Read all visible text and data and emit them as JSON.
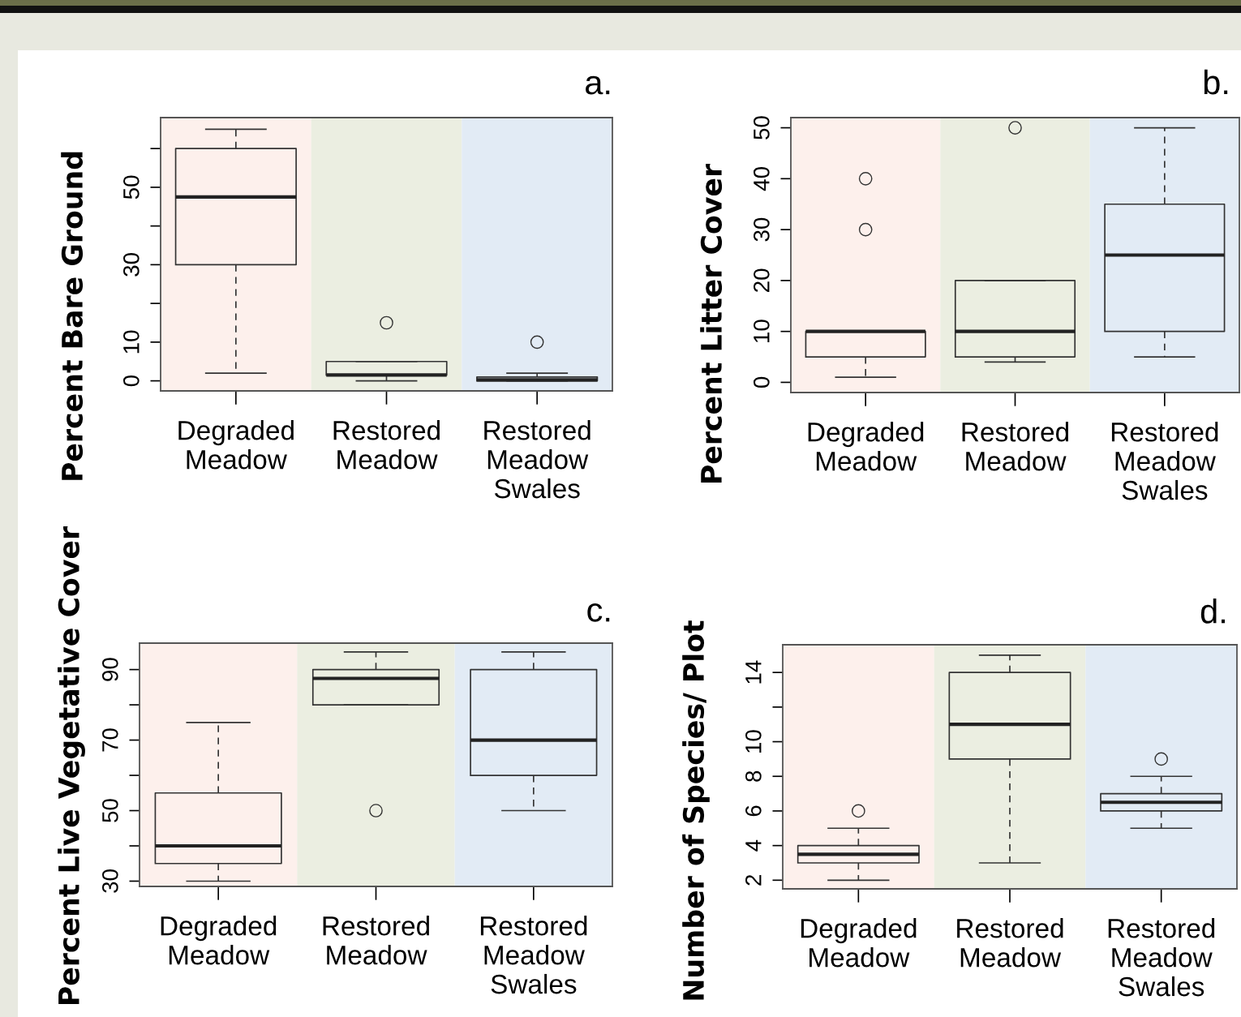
{
  "chart_data": [
    {
      "type": "box",
      "ylabel": "Percent Bare Ground",
      "annotations": [
        "a."
      ],
      "categories": [
        "Degraded\nMeadow",
        "Restored\nMeadow",
        "Restored\nMeadow\nSwales"
      ],
      "ylim": [
        -2.6,
        68
      ],
      "yticks": [
        0,
        10,
        {
          "value": 20,
          "label": null
        },
        30,
        {
          "value": 40,
          "label": null
        },
        50,
        {
          "value": 60,
          "label": null
        }
      ],
      "bands": [
        {
          "axis": "x",
          "from": "Degraded\nMeadow",
          "to": "Degraded\nMeadow",
          "color": "#fdf0ec"
        },
        {
          "axis": "x",
          "from": "Restored\nMeadow",
          "to": "Restored\nMeadow",
          "color": "#ebeee1"
        },
        {
          "axis": "x",
          "from": "Restored\nMeadow\nSwales",
          "to": "Restored\nMeadow\nSwales",
          "color": "#e2ebf5"
        }
      ],
      "boxes": [
        {
          "low": 2,
          "q1": 30,
          "median": 47.5,
          "q3": 60,
          "high": 65
        },
        {
          "low": 0,
          "q1": 1.5,
          "median": 1.5,
          "q3": 5,
          "high": 5,
          "outliers": [
            15
          ]
        },
        {
          "low": 0,
          "q1": 0,
          "median": 0.25,
          "q3": 1,
          "high": 2,
          "outliers": [
            10
          ]
        }
      ]
    },
    {
      "type": "box",
      "ylabel": "Percent Litter Cover",
      "annotations": [
        "b."
      ],
      "categories": [
        "Degraded\nMeadow",
        "Restored\nMeadow",
        "Restored\nMeadow\nSwales"
      ],
      "ylim": [
        -2,
        52
      ],
      "yticks": [
        0,
        10,
        20,
        30,
        40,
        50
      ],
      "bands": [
        {
          "axis": "x",
          "from": "Degraded\nMeadow",
          "to": "Degraded\nMeadow",
          "color": "#fdf0ec"
        },
        {
          "axis": "x",
          "from": "Restored\nMeadow",
          "to": "Restored\nMeadow",
          "color": "#ebeee1"
        },
        {
          "axis": "x",
          "from": "Restored\nMeadow\nSwales",
          "to": "Restored\nMeadow\nSwales",
          "color": "#e2ebf5"
        }
      ],
      "boxes": [
        {
          "low": 1,
          "q1": 5,
          "median": 10,
          "q3": 10,
          "high": 10,
          "outliers": [
            30,
            40
          ]
        },
        {
          "low": 4,
          "q1": 5,
          "median": 10,
          "q3": 20,
          "high": 20,
          "outliers": [
            50
          ]
        },
        {
          "low": 5,
          "q1": 10,
          "median": 25,
          "q3": 35,
          "high": 50
        }
      ]
    },
    {
      "type": "box",
      "ylabel": "Percent Live Vegetative Cover",
      "annotations": [
        "c."
      ],
      "categories": [
        "Degraded\nMeadow",
        "Restored\nMeadow",
        "Restored\nMeadow\nSwales"
      ],
      "ylim": [
        28.5,
        97.5
      ],
      "yticks": [
        30,
        {
          "value": 40,
          "label": null
        },
        50,
        {
          "value": 60,
          "label": null
        },
        70,
        {
          "value": 80,
          "label": null
        },
        90
      ],
      "bands": [
        {
          "axis": "x",
          "from": "Degraded\nMeadow",
          "to": "Degraded\nMeadow",
          "color": "#fdf0ec"
        },
        {
          "axis": "x",
          "from": "Restored\nMeadow",
          "to": "Restored\nMeadow",
          "color": "#ebeee1"
        },
        {
          "axis": "x",
          "from": "Restored\nMeadow\nSwales",
          "to": "Restored\nMeadow\nSwales",
          "color": "#e2ebf5"
        }
      ],
      "boxes": [
        {
          "low": 30,
          "q1": 35,
          "median": 40,
          "q3": 55,
          "high": 75
        },
        {
          "low": 80,
          "q1": 80,
          "median": 87.5,
          "q3": 90,
          "high": 95,
          "outliers": [
            50
          ]
        },
        {
          "low": 50,
          "q1": 60,
          "median": 70,
          "q3": 90,
          "high": 95
        }
      ]
    },
    {
      "type": "box",
      "ylabel": "Number of Species/ Plot",
      "annotations": [
        "d."
      ],
      "categories": [
        "Degraded\nMeadow",
        "Restored\nMeadow",
        "Restored\nMeadow\nSwales"
      ],
      "ylim": [
        1.5,
        15.6
      ],
      "yticks": [
        2,
        4,
        6,
        8,
        10,
        {
          "value": 12,
          "label": null
        },
        14
      ],
      "bands": [
        {
          "axis": "x",
          "from": "Degraded\nMeadow",
          "to": "Degraded\nMeadow",
          "color": "#fdf0ec"
        },
        {
          "axis": "x",
          "from": "Restored\nMeadow",
          "to": "Restored\nMeadow",
          "color": "#ebeee1"
        },
        {
          "axis": "x",
          "from": "Restored\nMeadow\nSwales",
          "to": "Restored\nMeadow\nSwales",
          "color": "#e2ebf5"
        }
      ],
      "boxes": [
        {
          "low": 2,
          "q1": 3,
          "median": 3.5,
          "q3": 4,
          "high": 5,
          "outliers": [
            6
          ]
        },
        {
          "low": 3,
          "q1": 9,
          "median": 11,
          "q3": 14,
          "high": 15
        },
        {
          "low": 5,
          "q1": 6,
          "median": 6.5,
          "q3": 7,
          "high": 8,
          "outliers": [
            9
          ]
        }
      ]
    }
  ]
}
